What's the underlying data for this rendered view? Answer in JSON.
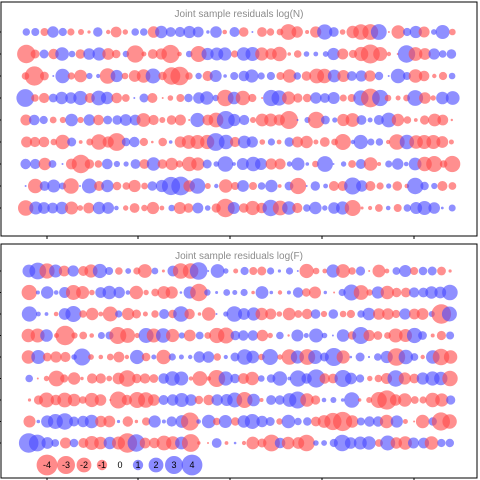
{
  "chart_data": [
    {
      "type": "scatter",
      "title": "Joint sample residuals log(N)",
      "xlabel": "",
      "ylabel": "",
      "n_rows": 9,
      "n_cols": 48,
      "colors": {
        "positive": "#4b4bff",
        "negative": "#ff4b4b"
      },
      "seed": 1729
    },
    {
      "type": "scatter",
      "title": "Joint sample residuals log(F)",
      "xlabel": "",
      "ylabel": "",
      "n_rows": 9,
      "n_cols": 48,
      "colors": {
        "positive": "#4b4bff",
        "negative": "#ff4b4b"
      },
      "seed": 9341
    }
  ],
  "legend": {
    "values": [
      -4,
      -3,
      -2,
      -1,
      0,
      1,
      2,
      3,
      4
    ],
    "labels": [
      "-4",
      "-3",
      "-2",
      "-1",
      "0",
      "1",
      "2",
      "3",
      "4"
    ]
  }
}
